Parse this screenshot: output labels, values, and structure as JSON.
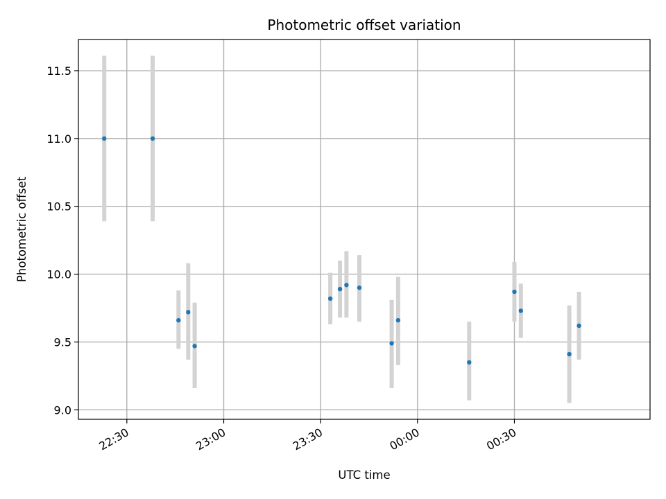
{
  "chart_data": {
    "type": "scatter",
    "title": "Photometric offset variation",
    "xlabel": "UTC time",
    "ylabel": "Photometric offset",
    "xlim": [
      "22:15",
      "01:12"
    ],
    "ylim": [
      8.93,
      11.73
    ],
    "x_ticks": [
      "22:30",
      "23:00",
      "23:30",
      "00:00",
      "00:30"
    ],
    "y_ticks": [
      "9.0",
      "9.5",
      "10.0",
      "10.5",
      "11.0",
      "11.5"
    ],
    "grid": true,
    "colors": {
      "marker": "#1f77b4",
      "errorbar": "#d3d3d3",
      "grid": "#b0b0b0"
    },
    "series": [
      {
        "x": [
          "22:23",
          "22:38",
          "22:46",
          "22:49",
          "22:51",
          "23:33",
          "23:36",
          "23:38",
          "23:42",
          "23:52",
          "23:54",
          "00:16",
          "00:30",
          "00:32",
          "00:47",
          "00:50"
        ],
        "y": [
          11.0,
          11.0,
          9.66,
          9.72,
          9.47,
          9.82,
          9.89,
          9.92,
          9.9,
          9.49,
          9.66,
          9.35,
          9.87,
          9.73,
          9.41,
          9.62
        ],
        "yerr_low": [
          10.39,
          10.39,
          9.45,
          9.37,
          9.16,
          9.63,
          9.68,
          9.68,
          9.65,
          9.16,
          9.33,
          9.07,
          9.65,
          9.53,
          9.05,
          9.37
        ],
        "yerr_high": [
          11.61,
          11.61,
          9.88,
          10.08,
          9.79,
          10.01,
          10.1,
          10.17,
          10.14,
          9.81,
          9.98,
          9.65,
          10.09,
          9.93,
          9.77,
          9.87
        ]
      }
    ]
  }
}
